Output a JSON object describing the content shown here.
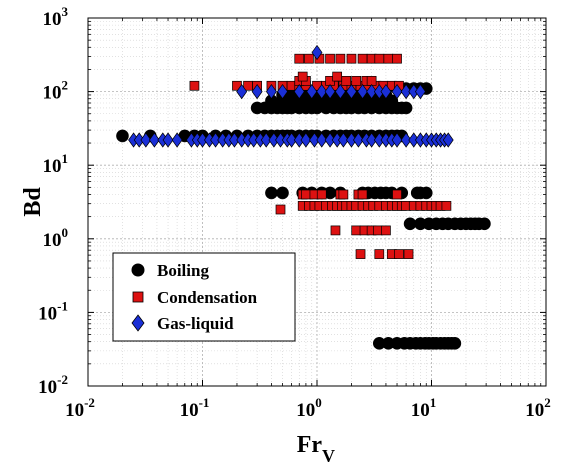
{
  "chart_data": {
    "type": "scatter",
    "xscale": "log",
    "yscale": "log",
    "xlim": [
      0.01,
      100
    ],
    "ylim": [
      0.01,
      1000
    ],
    "xlabel": "Fr",
    "xlabel_sub": "V",
    "ylabel": "Bd",
    "x_ticks": [
      {
        "base": "10",
        "exp": "-2"
      },
      {
        "base": "10",
        "exp": "-1"
      },
      {
        "base": "10",
        "exp": "0"
      },
      {
        "base": "10",
        "exp": "1"
      },
      {
        "base": "10",
        "exp": "2"
      }
    ],
    "y_ticks": [
      {
        "base": "10",
        "exp": "-2"
      },
      {
        "base": "10",
        "exp": "-1"
      },
      {
        "base": "10",
        "exp": "0"
      },
      {
        "base": "10",
        "exp": "1"
      },
      {
        "base": "10",
        "exp": "2"
      },
      {
        "base": "10",
        "exp": "3"
      }
    ],
    "grid": true,
    "minor_grid": true,
    "legend_position": "bottom-left",
    "series": [
      {
        "name": "Boiling",
        "marker": "circle",
        "color": "#000000",
        "clusters": [
          {
            "y": 25,
            "x": [
              0.02,
              0.035,
              0.07,
              0.085,
              0.1,
              0.13,
              0.16,
              0.2,
              0.25,
              0.3,
              0.35,
              0.4,
              0.45,
              0.5,
              0.55,
              0.6,
              0.7,
              0.8,
              0.9,
              1.0,
              1.2,
              1.4,
              1.6,
              1.8,
              2.0,
              2.3,
              2.6,
              3.0,
              3.5,
              4.0,
              4.5,
              5.0,
              5.5
            ]
          },
          {
            "y": 60,
            "x": [
              0.3,
              0.35,
              0.4,
              0.45,
              0.5,
              0.55,
              0.6,
              0.7,
              0.8,
              0.9,
              1.0,
              1.2,
              1.4,
              1.6,
              1.8,
              2.0,
              2.3,
              2.6,
              3.0,
              3.5,
              4.0,
              4.5,
              5.0,
              5.5,
              6.0
            ]
          },
          {
            "y": 75,
            "x": [
              0.4,
              0.5,
              0.6,
              0.7,
              0.8,
              0.9,
              1.0,
              1.2,
              1.4,
              1.6,
              1.8,
              2.0,
              2.3,
              2.6,
              3.0,
              3.5,
              4.0,
              4.5
            ]
          },
          {
            "y": 90,
            "x": [
              0.5,
              0.6,
              0.7,
              0.8,
              0.9,
              1.0,
              1.2,
              1.4,
              1.6,
              1.8,
              2.0,
              2.3,
              2.6,
              3.0,
              3.5,
              4.0
            ]
          },
          {
            "y": 110,
            "x": [
              1.2,
              1.5,
              2.0,
              2.5,
              3.0,
              4.0,
              5.0,
              6.0,
              7.0,
              8.0,
              9.0
            ]
          },
          {
            "y": 4.2,
            "x": [
              0.4,
              0.5,
              0.75,
              0.9,
              1.1,
              1.3,
              1.6,
              2.5,
              2.8,
              3.2,
              3.6,
              4.0,
              4.5,
              5.5,
              7.5,
              8.0,
              9.0
            ]
          },
          {
            "y": 1.6,
            "x": [
              6.5,
              8.0,
              9.5,
              11,
              12.5,
              14,
              16,
              18,
              20,
              22,
              24,
              26,
              29
            ]
          },
          {
            "y": 0.038,
            "x": [
              3.5,
              4.2,
              5.0,
              5.8,
              6.5,
              7.3,
              8.0,
              8.8,
              9.5,
              10.3,
              11,
              12,
              13,
              14,
              15,
              16
            ]
          }
        ]
      },
      {
        "name": "Condensation",
        "marker": "square",
        "color": "#dd1111",
        "clusters": [
          {
            "y": 280,
            "x": [
              0.7,
              0.85,
              1.05,
              1.3,
              1.6,
              2.0,
              2.5,
              3.0,
              3.5,
              4.2,
              5.0
            ]
          },
          {
            "y": 120,
            "x": [
              0.085,
              0.2,
              0.25,
              0.3,
              0.4,
              0.5,
              0.6,
              0.7,
              0.8,
              1.0,
              1.2,
              1.4,
              1.7,
              2.0,
              2.4,
              2.8,
              3.3,
              3.8,
              4.5,
              5.2
            ]
          },
          {
            "y": 140,
            "x": [
              0.7,
              0.8,
              1.3,
              1.8,
              2.2,
              2.7,
              3.0
            ]
          },
          {
            "y": 160,
            "x": [
              0.75,
              1.5
            ]
          },
          {
            "y": 4.0,
            "x": [
              0.75,
              0.8,
              0.95,
              1.1,
              1.6,
              1.7,
              2.3,
              2.5,
              5.0
            ]
          },
          {
            "y": 2.5,
            "x": [
              0.48
            ]
          },
          {
            "y": 2.8,
            "x": [
              0.75,
              0.85,
              0.95,
              1.05,
              1.2,
              1.35,
              1.5,
              1.65,
              1.8,
              2.0,
              2.2,
              2.5,
              2.8,
              3.1,
              3.5,
              4.0,
              4.5,
              5.0,
              5.5,
              6.0,
              7.0,
              8.0,
              9.0,
              10,
              11,
              12,
              13.5
            ]
          },
          {
            "y": 1.3,
            "x": [
              1.45,
              2.2,
              2.6,
              3.0,
              3.4,
              4.0
            ]
          },
          {
            "y": 0.62,
            "x": [
              2.4,
              3.5,
              4.5,
              5.2,
              6.3
            ]
          }
        ]
      },
      {
        "name": "Gas-liquid",
        "marker": "diamond",
        "color": "#1a2fd6",
        "clusters": [
          {
            "y": 22,
            "x": [
              0.025,
              0.028,
              0.032,
              0.038,
              0.045,
              0.05,
              0.06,
              0.08,
              0.09,
              0.1,
              0.115,
              0.13,
              0.15,
              0.17,
              0.19,
              0.22,
              0.25,
              0.28,
              0.32,
              0.36,
              0.42,
              0.48,
              0.55,
              0.6,
              0.7,
              0.8,
              0.95,
              1.1,
              1.3,
              1.5,
              1.7,
              2.0,
              2.3,
              2.7,
              3.0,
              3.5,
              4.0,
              4.5,
              5.0,
              6.0,
              7.0,
              8.0,
              9.0,
              10,
              11,
              12,
              13,
              14
            ]
          },
          {
            "y": 100,
            "x": [
              0.22,
              0.3,
              0.4,
              0.5,
              0.7,
              0.9,
              1.1,
              1.3,
              1.6,
              2.0,
              2.5,
              3.0,
              3.5,
              4.0,
              5.0,
              6.0,
              7.0,
              8.0
            ]
          },
          {
            "y": 340,
            "x": [
              1.0
            ]
          }
        ]
      }
    ]
  }
}
